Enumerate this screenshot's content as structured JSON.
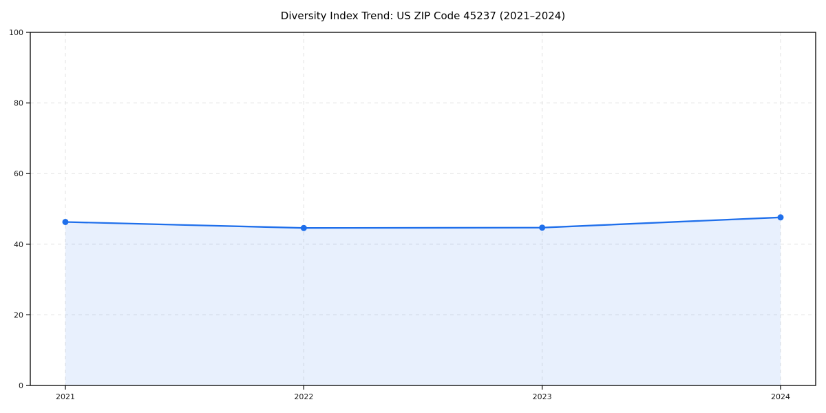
{
  "chart_data": {
    "type": "area",
    "title": "Diversity Index Trend: US ZIP Code 45237 (2021–2024)",
    "x": [
      "2021",
      "2022",
      "2023",
      "2024"
    ],
    "series": [
      {
        "name": "Diversity Index",
        "values": [
          46.3,
          44.6,
          44.7,
          47.6
        ]
      }
    ],
    "xlabel": "",
    "ylabel": "",
    "ylim": [
      0,
      100
    ],
    "yticks": [
      0,
      20,
      40,
      60,
      80,
      100
    ],
    "grid": true,
    "grid_style": "dashed",
    "legend": "none",
    "colors": {
      "line": "#1f6feb",
      "marker": "#1f6feb",
      "fill": "#1f6feb",
      "fill_opacity": 0.1,
      "grid": "#e0e0e0",
      "frame": "#000000",
      "text": "#1a1a1a",
      "background": "#ffffff"
    }
  }
}
